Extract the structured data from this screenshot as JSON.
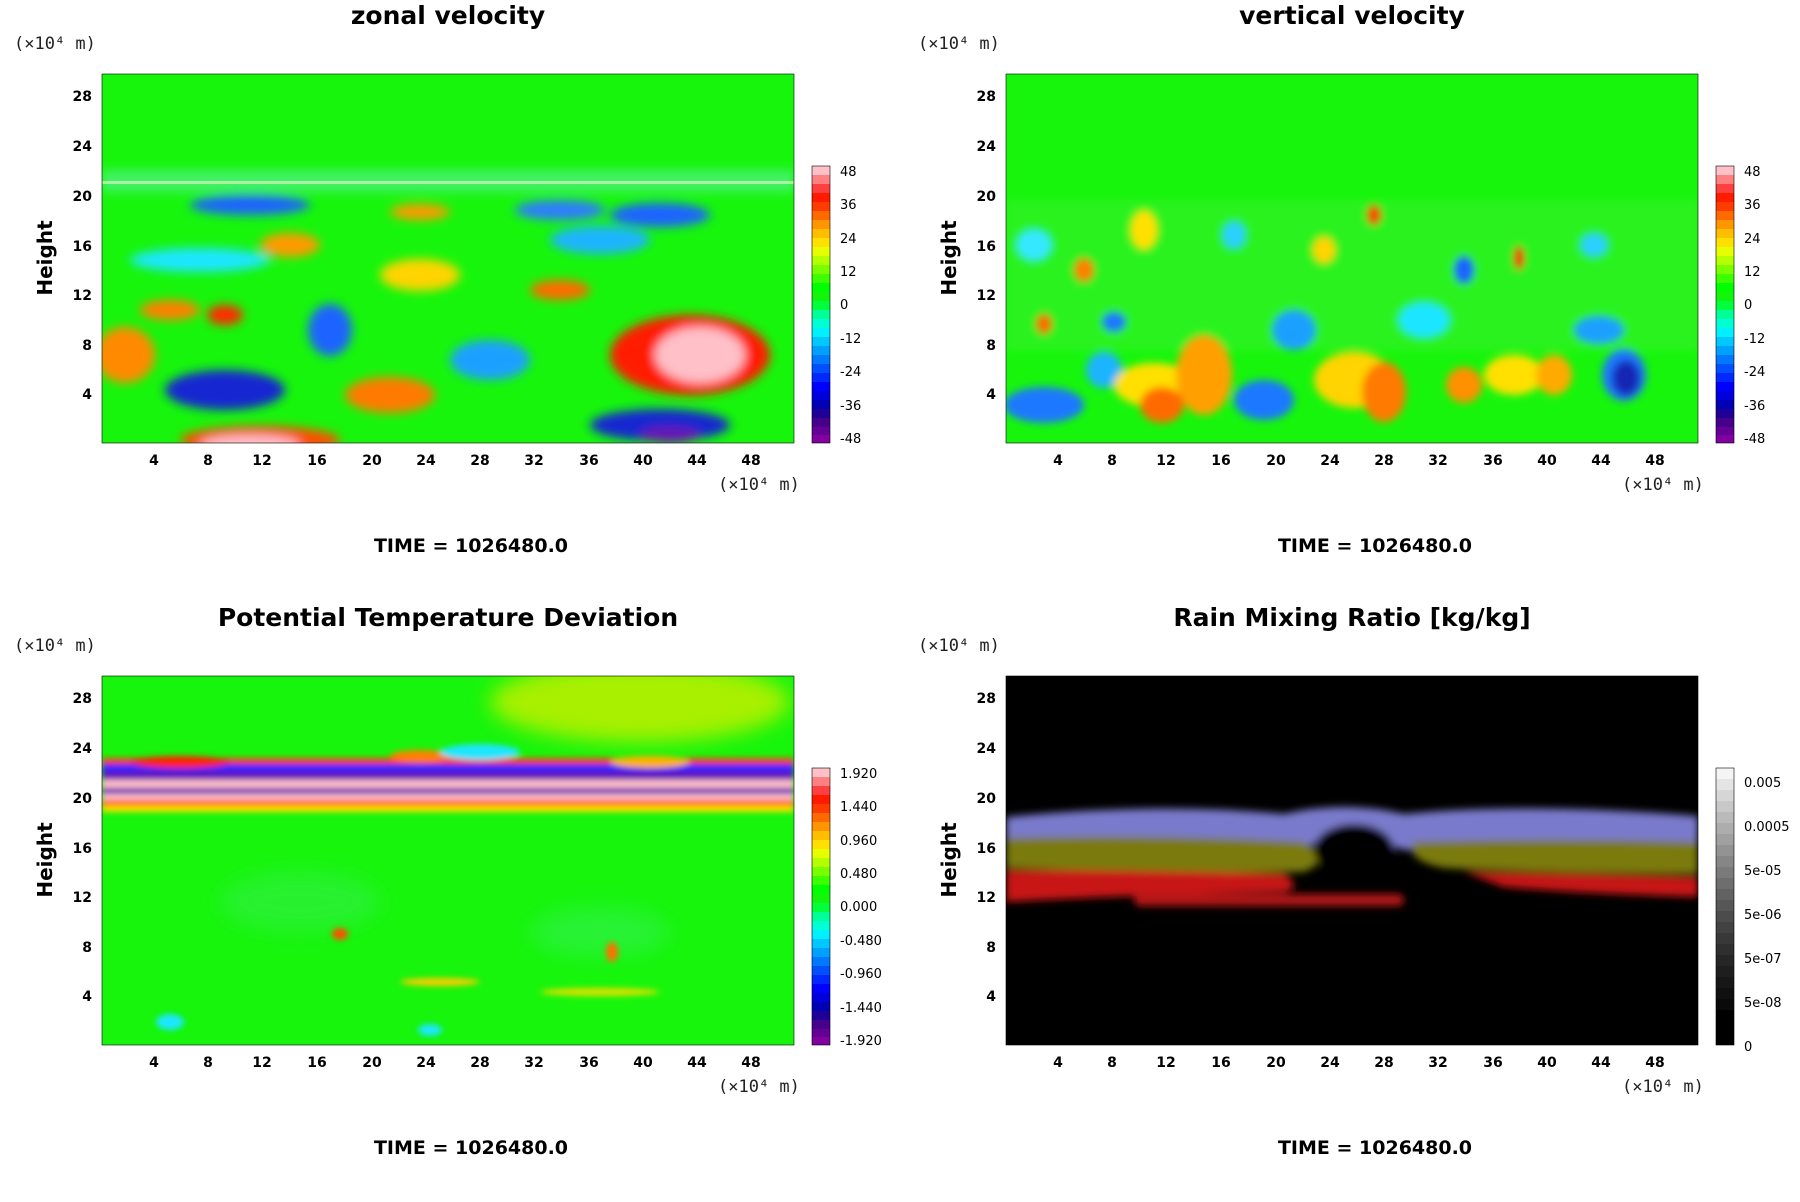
{
  "chart_data": [
    {
      "type": "heatmap",
      "title": "zonal velocity",
      "ylabel": "Height",
      "x_unit": "(×10⁴ m)",
      "y_unit": "(×10⁴ m)",
      "x_ticks": [
        "4",
        "8",
        "12",
        "16",
        "20",
        "24",
        "28",
        "32",
        "36",
        "40",
        "44",
        "48"
      ],
      "y_ticks": [
        "4",
        "8",
        "12",
        "16",
        "20",
        "24",
        "28"
      ],
      "colorbar_labels": [
        "48",
        "36",
        "24",
        "12",
        "0",
        "-12",
        "-24",
        "-36",
        "-48"
      ],
      "colorbar_range": [
        -48,
        48
      ],
      "colormap": "rainbow",
      "time_label": "TIME = 1026480.0"
    },
    {
      "type": "heatmap",
      "title": "vertical velocity",
      "ylabel": "Height",
      "x_unit": "(×10⁴ m)",
      "y_unit": "(×10⁴ m)",
      "x_ticks": [
        "4",
        "8",
        "12",
        "16",
        "20",
        "24",
        "28",
        "32",
        "36",
        "40",
        "44",
        "48"
      ],
      "y_ticks": [
        "4",
        "8",
        "12",
        "16",
        "20",
        "24",
        "28"
      ],
      "colorbar_labels": [
        "48",
        "36",
        "24",
        "12",
        "0",
        "-12",
        "-24",
        "-36",
        "-48"
      ],
      "colorbar_range": [
        -48,
        48
      ],
      "colormap": "rainbow",
      "time_label": "TIME = 1026480.0"
    },
    {
      "type": "heatmap",
      "title": "Potential Temperature Deviation",
      "ylabel": "Height",
      "x_unit": "(×10⁴ m)",
      "y_unit": "(×10⁴ m)",
      "x_ticks": [
        "4",
        "8",
        "12",
        "16",
        "20",
        "24",
        "28",
        "32",
        "36",
        "40",
        "44",
        "48"
      ],
      "y_ticks": [
        "4",
        "8",
        "12",
        "16",
        "20",
        "24",
        "28"
      ],
      "colorbar_labels": [
        "1.920",
        "1.440",
        "0.960",
        "0.480",
        "0.000",
        "-0.480",
        "-0.960",
        "-1.440",
        "-1.920"
      ],
      "colorbar_range": [
        -1.92,
        1.92
      ],
      "colormap": "rainbow",
      "time_label": "TIME = 1026480.0"
    },
    {
      "type": "heatmap",
      "title": "Rain Mixing Ratio [kg/kg]",
      "ylabel": "Height",
      "x_unit": "(×10⁴ m)",
      "y_unit": "(×10⁴ m)",
      "x_ticks": [
        "4",
        "8",
        "12",
        "16",
        "20",
        "24",
        "28",
        "32",
        "36",
        "40",
        "44",
        "48"
      ],
      "y_ticks": [
        "4",
        "8",
        "12",
        "16",
        "20",
        "24",
        "28"
      ],
      "colorbar_labels": [
        "0.005",
        "0.0005",
        "5e-05",
        "5e-06",
        "5e-07",
        "5e-08",
        "0"
      ],
      "colormap": "grayscale-log",
      "time_label": "TIME = 1026480.0"
    }
  ]
}
